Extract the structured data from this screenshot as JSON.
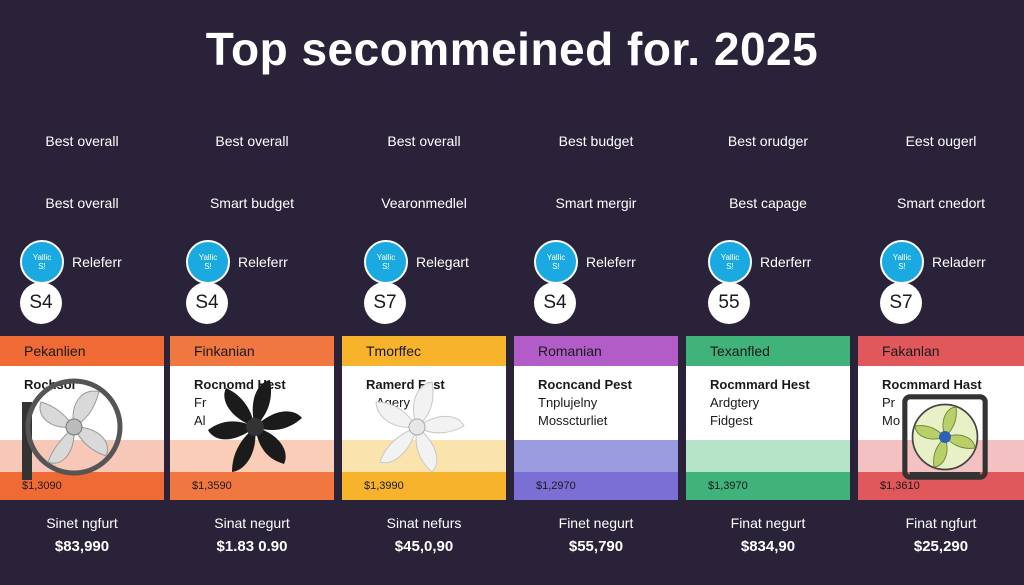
{
  "title": "Top secommeined for. 2025",
  "columns": [
    {
      "label1": "Best overall",
      "label2": "Best overall",
      "badge_line1": "Yallic",
      "badge_line2": "S!",
      "badge_text": "Releferr",
      "score": "S4",
      "card_header": "Pekanlien",
      "card_line1": "Rochsol",
      "card_line2": "",
      "card_line3": "",
      "card_price": "$1,3090",
      "bottom_label": "Sinet ngfurt",
      "bottom_price": "$83,990",
      "accent": "#f06a35",
      "band": "#f7c7b8",
      "fan": "grey-frame-fan-icon"
    },
    {
      "label1": "Best overall",
      "label2": "Smart budget",
      "badge_line1": "Yallic",
      "badge_line2": "S!",
      "badge_text": "Releferr",
      "score": "S4",
      "card_header": "Finkanian",
      "card_line1": "Rocnomd Hest",
      "card_line2": "Fr",
      "card_line3": "Al",
      "card_price": "$1,3590",
      "bottom_label": "Sinat negurt",
      "bottom_price": "$1.83 0.90",
      "accent": "#f07840",
      "band": "#f9cdb8",
      "fan": "black-fan-icon"
    },
    {
      "label1": "Best overall",
      "label2": "Vearonmedlel",
      "badge_line1": "Yallic",
      "badge_line2": "S!",
      "badge_text": "Relegart",
      "score": "S7",
      "card_header": "Tmorffec",
      "card_line1": "Ramerd Fest",
      "card_line2": "Agery",
      "card_line3": "",
      "card_price": "$1,3990",
      "bottom_label": "Sinat nefurs",
      "bottom_price": "$45,0,90",
      "accent": "#f7b32b",
      "band": "#fbe3ad",
      "fan": "white-fan-icon"
    },
    {
      "label1": "Best budget",
      "label2": "Smart mergir",
      "badge_line1": "Yallic",
      "badge_line2": "S!",
      "badge_text": "Releferr",
      "score": "S4",
      "card_header": "Romanian",
      "card_line1": "Rocncand Pest",
      "card_line2": "Tnplujelny",
      "card_line3": "Mosscturliet",
      "card_price": "$1,2970",
      "bottom_label": "Finet negurt",
      "bottom_price": "$55,790",
      "accent": "#b25cc8",
      "band": "#9b9be0",
      "fan": ""
    },
    {
      "label1": "Best orudger",
      "label2": "Best capage",
      "badge_line1": "Yallic",
      "badge_line2": "S!",
      "badge_text": "Rderferr",
      "score": "55",
      "card_header": "Texanfled",
      "card_line1": "Rocmmard Hest",
      "card_line2": "Ardgtery",
      "card_line3": "Fidgest",
      "card_price": "$1,3970",
      "bottom_label": "Finat negurt",
      "bottom_price": "$834,90",
      "accent": "#3fb37a",
      "band": "#b4e3c8",
      "fan": ""
    },
    {
      "label1": "Eest ougerl",
      "label2": "Smart cnedort",
      "badge_line1": "Yallic",
      "badge_line2": "S!",
      "badge_text": "Reladerr",
      "score": "S7",
      "card_header": "Fakanlan",
      "card_line1": "Rocmmard Hast",
      "card_line2": "Pr",
      "card_line3": "Mo",
      "card_price": "$1,3610",
      "bottom_label": "Finat ngfurt",
      "bottom_price": "$25,290",
      "accent": "#e0585b",
      "band": "#f3c1c1",
      "fan": "box-fan-icon"
    }
  ]
}
